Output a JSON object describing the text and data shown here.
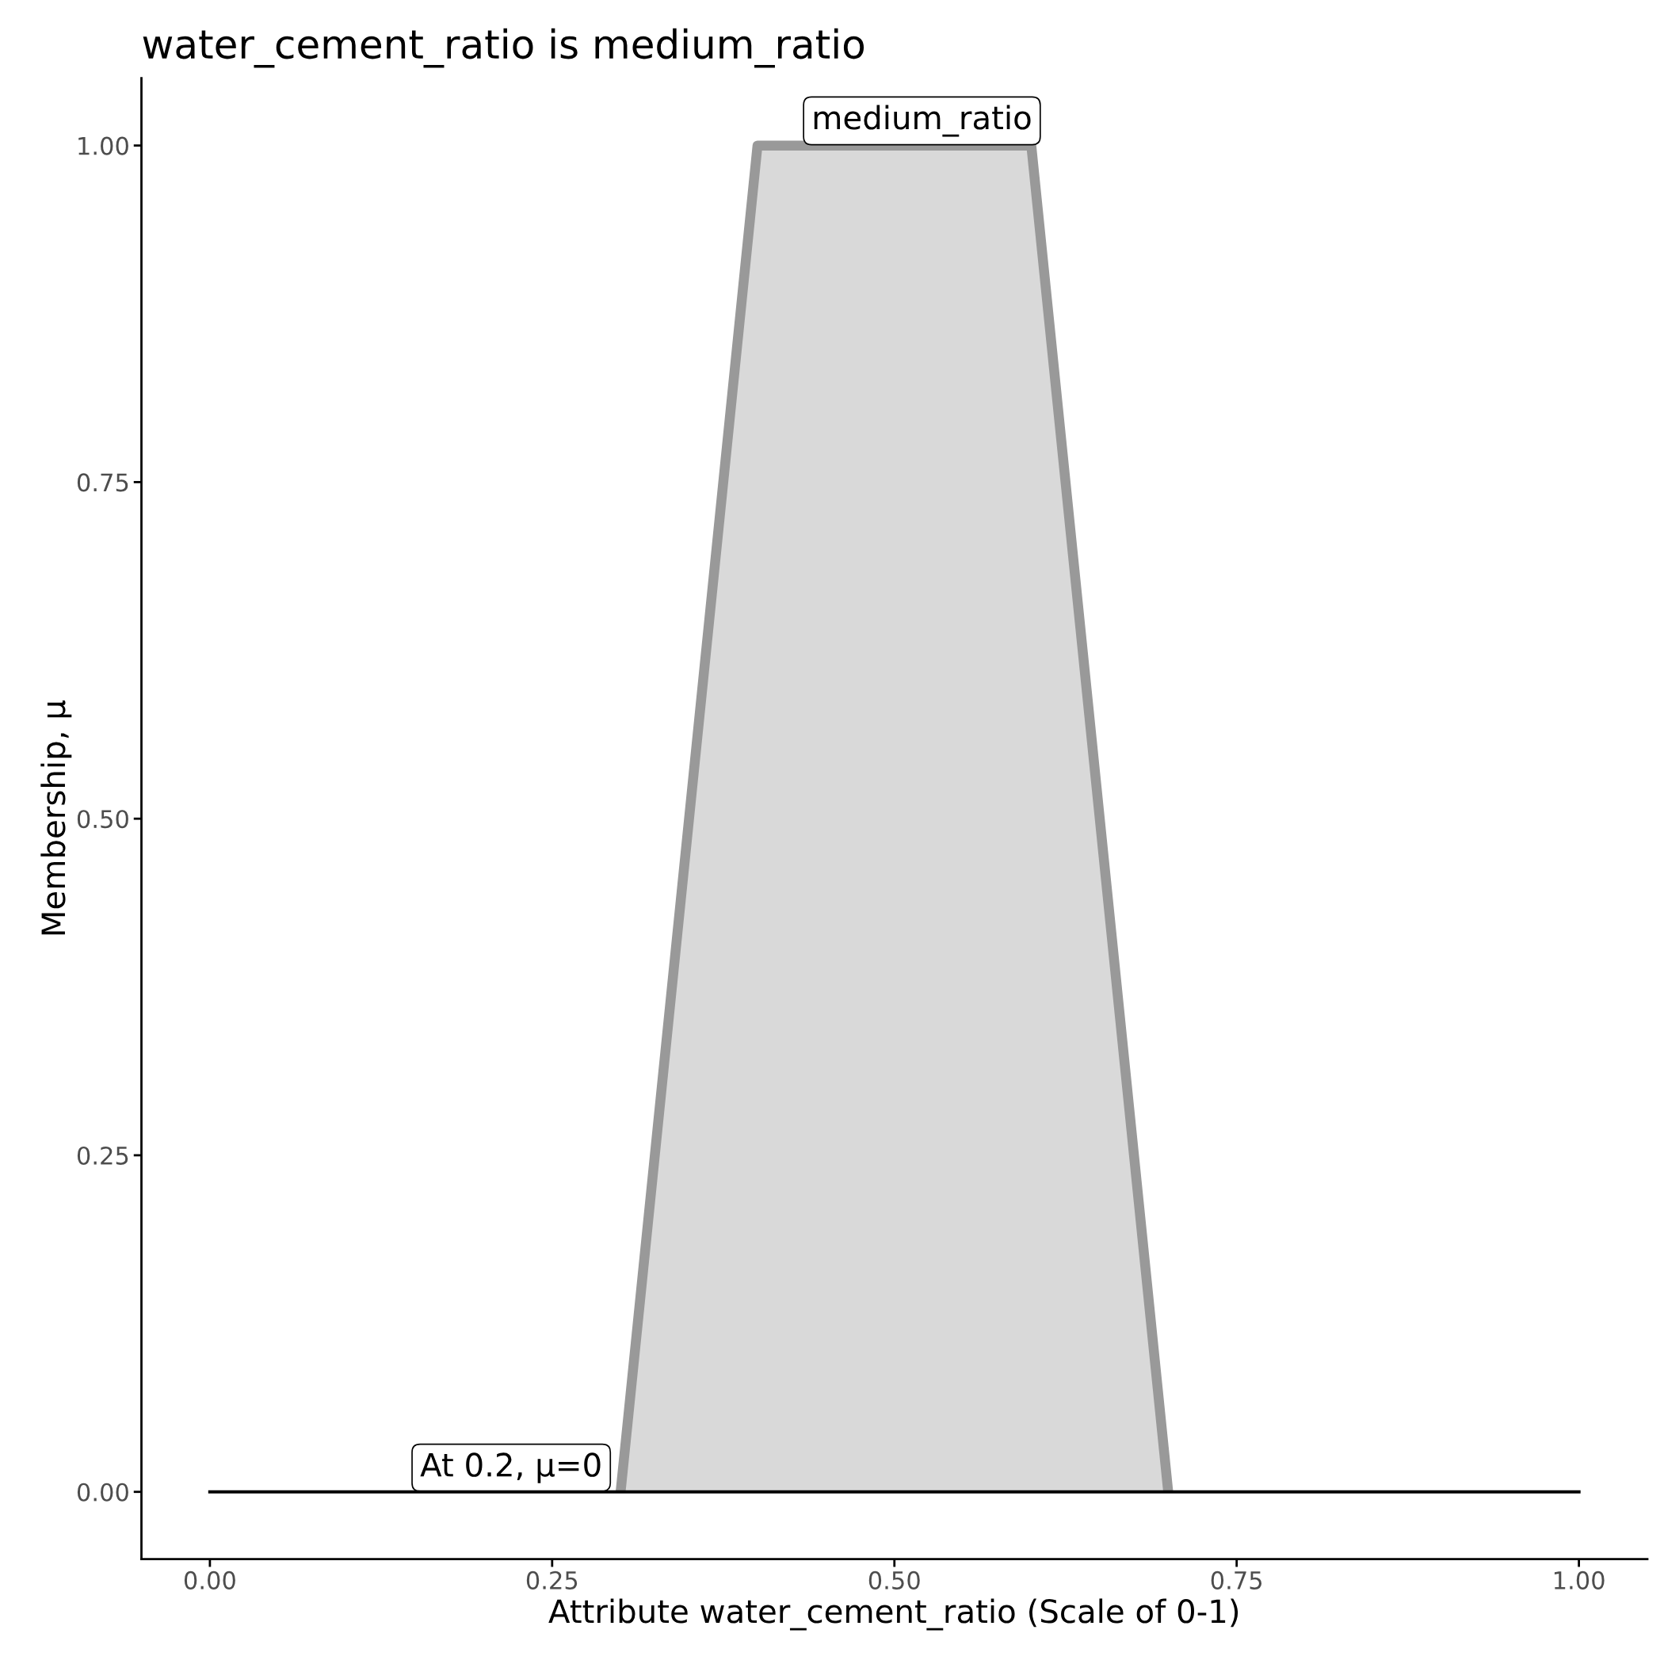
{
  "chart_data": {
    "type": "area",
    "title": "water_cement_ratio is medium_ratio",
    "xlabel": "Attribute water_cement_ratio (Scale of 0-1)",
    "ylabel": "Membership, μ",
    "series": [
      {
        "color": "#999999",
        "x": [
          0.3,
          0.4,
          0.6,
          0.7
        ],
        "values": [
          0,
          1,
          1,
          0
        ]
      },
      {
        "type": "line",
        "color": "#000000",
        "x": [
          0,
          1
        ],
        "values": [
          0,
          0
        ]
      }
    ],
    "annotations": [
      {
        "text": "medium_ratio",
        "x": 0.5,
        "y": 1
      },
      {
        "text": "At 0.2, μ=0",
        "x": 0.2,
        "y": 0
      }
    ],
    "xlim": [
      -0.05,
      1.05
    ],
    "ylim": [
      -0.05,
      1.05
    ],
    "xticks": [
      {
        "value": 0,
        "label": "0.00"
      },
      {
        "value": 0.25,
        "label": "0.25"
      },
      {
        "value": 0.5,
        "label": "0.50"
      },
      {
        "value": 0.75,
        "label": "0.75"
      },
      {
        "value": 1,
        "label": "1.00"
      }
    ],
    "yticks": [
      {
        "value": 0,
        "label": "0.00"
      },
      {
        "value": 0.25,
        "label": "0.25"
      },
      {
        "value": 0.5,
        "label": "0.50"
      },
      {
        "value": 0.75,
        "label": "0.75"
      },
      {
        "value": 1,
        "label": "1.00"
      }
    ],
    "grid": false
  }
}
